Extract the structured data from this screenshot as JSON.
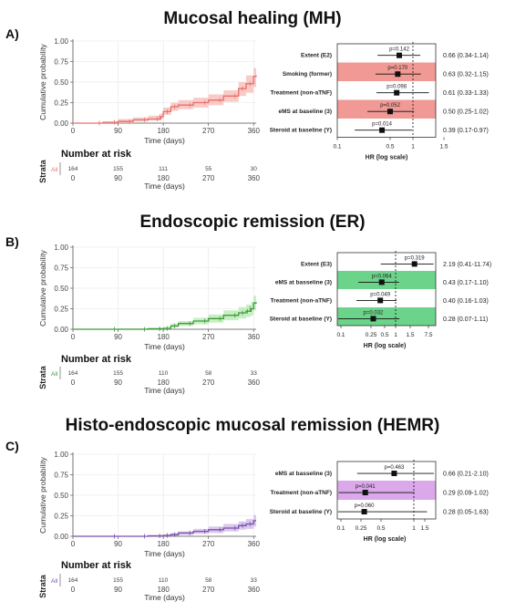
{
  "panels": [
    {
      "label": "A)",
      "title": "Mucosal healing (MH)",
      "km": {
        "ylabel": "Cumulative probability",
        "xlabel": "Time (days)",
        "yticks": [
          "0.00",
          "0.25",
          "0.50",
          "0.75",
          "1.00"
        ],
        "xticks": [
          "0",
          "90",
          "180",
          "270",
          "360"
        ],
        "color": "#e8706c",
        "band_color": "#f6b9b4",
        "risk_title": "Number at risk",
        "strata_label": "Strata",
        "strata_name": "All",
        "risk_counts": [
          "164",
          "155",
          "111",
          "55",
          "30"
        ],
        "risk_xlabel": "Time (days)"
      },
      "forest": {
        "xlabel": "HR (log scale)",
        "ticks": [
          "0.1",
          "0.5",
          "1",
          "1.5"
        ],
        "highlight_color": "#f08e8a",
        "rows": [
          {
            "label": "Extent (E2)",
            "p": "p=0.142",
            "hr_text": "0.66 (0.34-1.14)",
            "hr": 0.66,
            "lo": 0.34,
            "hi": 1.14,
            "highlight": false
          },
          {
            "label": "Smoking (former)",
            "p": "p=0.170",
            "hr_text": "0.63 (0.32-1.15)",
            "hr": 0.63,
            "lo": 0.32,
            "hi": 1.15,
            "highlight": true
          },
          {
            "label": "Treatment (non-aTNF)",
            "p": "p=0.098",
            "hr_text": "0.61 (0.33-1.33)",
            "hr": 0.61,
            "lo": 0.33,
            "hi": 1.33,
            "highlight": false
          },
          {
            "label": "eMS at baseline (3)",
            "p": "p=0.052",
            "hr_text": "0.50 (0.25-1.02)",
            "hr": 0.5,
            "lo": 0.25,
            "hi": 1.02,
            "highlight": true
          },
          {
            "label": "Steroid at baseline (Y)",
            "p": "p=0.014",
            "hr_text": "0.39 (0.17-0.97)",
            "hr": 0.39,
            "lo": 0.17,
            "hi": 0.97,
            "highlight": false
          }
        ]
      }
    },
    {
      "label": "B)",
      "title": "Endoscopic remission (ER)",
      "km": {
        "ylabel": "Cumulative probability",
        "xlabel": "Time (days)",
        "yticks": [
          "0.00",
          "0.25",
          "0.50",
          "0.75",
          "1.00"
        ],
        "xticks": [
          "0",
          "90",
          "180",
          "270",
          "360"
        ],
        "color": "#3f9a3a",
        "band_color": "#b5eab0",
        "risk_title": "Number at risk",
        "strata_label": "Strata",
        "strata_name": "All",
        "risk_counts": [
          "164",
          "155",
          "110",
          "58",
          "33"
        ],
        "risk_xlabel": "Time (days)"
      },
      "forest": {
        "xlabel": "HR (log scale)",
        "ticks": [
          "0.1",
          "0.25",
          "0.5",
          "1",
          "1.5",
          "7.5"
        ],
        "highlight_color": "#5bce7d",
        "rows": [
          {
            "label": "Extent (E3)",
            "p": "p=0.319",
            "hr_text": "2.19 (0.41-11.74)",
            "hr": 2.19,
            "lo": 0.41,
            "hi": 11.74,
            "highlight": false
          },
          {
            "label": "eMS at basseline (3)",
            "p": "p=0.064",
            "hr_text": "0.43 (0.17-1.10)",
            "hr": 0.43,
            "lo": 0.17,
            "hi": 1.1,
            "highlight": true
          },
          {
            "label": "Treatment (non-aTNF)",
            "p": "p=0.049",
            "hr_text": "0.40 (0.16-1.03)",
            "hr": 0.4,
            "lo": 0.16,
            "hi": 1.03,
            "highlight": false
          },
          {
            "label": "Steroid at baseline (Y)",
            "p": "p=0.032",
            "hr_text": "0.28 (0.07-1.11)",
            "hr": 0.28,
            "lo": 0.07,
            "hi": 1.11,
            "highlight": true
          }
        ]
      }
    },
    {
      "label": "C)",
      "title": "Histo-endoscopic mucosal remission (HEMR)",
      "km": {
        "ylabel": "Cumulative probability",
        "xlabel": "Time (days)",
        "yticks": [
          "0.00",
          "0.25",
          "0.50",
          "0.75",
          "1.00"
        ],
        "xticks": [
          "0",
          "90",
          "180",
          "270",
          "360"
        ],
        "color": "#7a4fb0",
        "band_color": "#cdb6e6",
        "risk_title": "Number at risk",
        "strata_label": "Strata",
        "strata_name": "All",
        "risk_counts": [
          "164",
          "155",
          "110",
          "58",
          "33"
        ],
        "risk_xlabel": "Time (days)"
      },
      "forest": {
        "xlabel": "HR (log scale)",
        "ticks": [
          "0.1",
          "0.25",
          "0.5",
          "1",
          "1.5"
        ],
        "highlight_color": "#d79ee8",
        "rows": [
          {
            "label": "eMS at basseline (3)",
            "p": "p=0.463",
            "hr_text": "0.66 (0.21-2.10)",
            "hr": 0.66,
            "lo": 0.21,
            "hi": 2.1,
            "highlight": false
          },
          {
            "label": "Treatment (non-aTNF)",
            "p": "p=0.041",
            "hr_text": "0.29 (0.09-1.02)",
            "hr": 0.29,
            "lo": 0.09,
            "hi": 1.02,
            "highlight": true
          },
          {
            "label": "Steroid at baseline (Y)",
            "p": "p=0.060",
            "hr_text": "0.28 (0.05-1.63)",
            "hr": 0.28,
            "lo": 0.05,
            "hi": 1.63,
            "highlight": false
          }
        ]
      }
    }
  ],
  "chart_data": [
    {
      "type": "line",
      "title": "Mucosal healing (MH)",
      "xlabel": "Time (days)",
      "ylabel": "Cumulative probability",
      "xlim": [
        0,
        365
      ],
      "ylim": [
        0,
        1
      ],
      "series": [
        {
          "x": [
            0,
            60,
            90,
            120,
            150,
            175,
            180,
            195,
            210,
            240,
            270,
            300,
            330,
            345,
            360,
            365
          ],
          "y": [
            0,
            0.01,
            0.02,
            0.04,
            0.05,
            0.08,
            0.14,
            0.2,
            0.22,
            0.25,
            0.28,
            0.33,
            0.42,
            0.48,
            0.57,
            0.58
          ],
          "lower": [
            0,
            0,
            0,
            0.02,
            0.03,
            0.05,
            0.1,
            0.15,
            0.17,
            0.19,
            0.22,
            0.26,
            0.33,
            0.37,
            0.44,
            0.45
          ],
          "upper": [
            0,
            0.02,
            0.05,
            0.07,
            0.09,
            0.12,
            0.19,
            0.25,
            0.28,
            0.31,
            0.35,
            0.4,
            0.5,
            0.58,
            0.67,
            0.68
          ]
        }
      ],
      "risk_table": {
        "times": [
          0,
          90,
          180,
          270,
          360
        ],
        "counts": [
          164,
          155,
          111,
          55,
          30
        ]
      }
    },
    {
      "type": "line",
      "title": "Endoscopic remission (ER)",
      "xlabel": "Time (days)",
      "ylabel": "Cumulative probability",
      "xlim": [
        0,
        365
      ],
      "ylim": [
        0,
        1
      ],
      "series": [
        {
          "x": [
            0,
            90,
            150,
            180,
            195,
            210,
            240,
            270,
            300,
            330,
            345,
            355,
            360,
            365
          ],
          "y": [
            0,
            0,
            0.005,
            0.01,
            0.04,
            0.07,
            0.1,
            0.13,
            0.17,
            0.2,
            0.22,
            0.25,
            0.32,
            0.33
          ],
          "lower": [
            0,
            0,
            0,
            0,
            0.02,
            0.04,
            0.06,
            0.08,
            0.11,
            0.13,
            0.15,
            0.17,
            0.23,
            0.24
          ],
          "upper": [
            0,
            0.01,
            0.02,
            0.03,
            0.07,
            0.1,
            0.14,
            0.18,
            0.23,
            0.27,
            0.3,
            0.33,
            0.41,
            0.42
          ]
        }
      ],
      "risk_table": {
        "times": [
          0,
          90,
          180,
          270,
          360
        ],
        "counts": [
          164,
          155,
          110,
          58,
          33
        ]
      }
    },
    {
      "type": "line",
      "title": "Histo-endoscopic mucosal remission (HEMR)",
      "xlabel": "Time (days)",
      "ylabel": "Cumulative probability",
      "xlim": [
        0,
        365
      ],
      "ylim": [
        0,
        1
      ],
      "series": [
        {
          "x": [
            0,
            90,
            150,
            180,
            195,
            210,
            240,
            270,
            300,
            330,
            345,
            360,
            365
          ],
          "y": [
            0,
            0,
            0.005,
            0.01,
            0.02,
            0.04,
            0.06,
            0.08,
            0.1,
            0.13,
            0.15,
            0.19,
            0.19
          ],
          "lower": [
            0,
            0,
            0,
            0,
            0.005,
            0.015,
            0.03,
            0.04,
            0.06,
            0.08,
            0.09,
            0.12,
            0.12
          ],
          "upper": [
            0,
            0.005,
            0.015,
            0.025,
            0.04,
            0.06,
            0.09,
            0.12,
            0.15,
            0.18,
            0.21,
            0.26,
            0.26
          ]
        }
      ],
      "risk_table": {
        "times": [
          0,
          90,
          180,
          270,
          360
        ],
        "counts": [
          164,
          155,
          110,
          58,
          33
        ]
      }
    }
  ]
}
